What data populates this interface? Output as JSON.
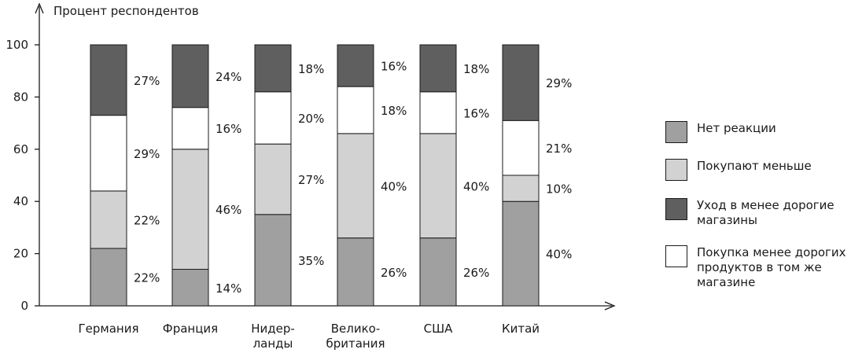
{
  "chart_data": {
    "type": "bar",
    "stacked": true,
    "ylabel": "Процент респондентов",
    "ylim": [
      0,
      100
    ],
    "yticks": [
      0,
      20,
      40,
      60,
      80,
      100
    ],
    "categories": [
      [
        "Германия"
      ],
      [
        "Франция"
      ],
      [
        "Нидер-",
        "ланды"
      ],
      [
        "Велико-",
        "британия"
      ],
      [
        "США"
      ],
      [
        "Китай"
      ]
    ],
    "series": [
      {
        "name": "Нет реакции",
        "color": "#a0a0a0",
        "values": [
          22,
          14,
          35,
          26,
          26,
          40
        ],
        "labels": [
          "22%",
          "14%",
          "35%",
          "26%",
          "26%",
          "40%"
        ]
      },
      {
        "name": "Покупают меньше",
        "color": "#d2d2d2",
        "values": [
          22,
          46,
          27,
          40,
          40,
          10
        ],
        "labels": [
          "22%",
          "46%",
          "27%",
          "40%",
          "40%",
          "10%"
        ]
      },
      {
        "name": "Покупка менее дорогих продуктов в том же магазине",
        "color": "#ffffff",
        "values": [
          29,
          16,
          20,
          18,
          16,
          21
        ],
        "labels": [
          "29%",
          "16%",
          "20%",
          "18%",
          "16%",
          "21%"
        ]
      },
      {
        "name": "Уход в менее дорогие магазины",
        "color": "#5f5f5f",
        "values": [
          27,
          24,
          18,
          16,
          18,
          29
        ],
        "labels": [
          "27%",
          "24%",
          "18%",
          "16%",
          "18%",
          "29%"
        ]
      }
    ],
    "grid": false
  },
  "legend": [
    {
      "label": "Нет реакции",
      "color": "#a0a0a0"
    },
    {
      "label": "Покупают меньше",
      "color": "#d2d2d2"
    },
    {
      "label": "Уход в менее дорогие магазины",
      "color": "#5f5f5f"
    },
    {
      "label": "Покупка менее дорогих продуктов в том же магазине",
      "color": "#ffffff"
    }
  ]
}
